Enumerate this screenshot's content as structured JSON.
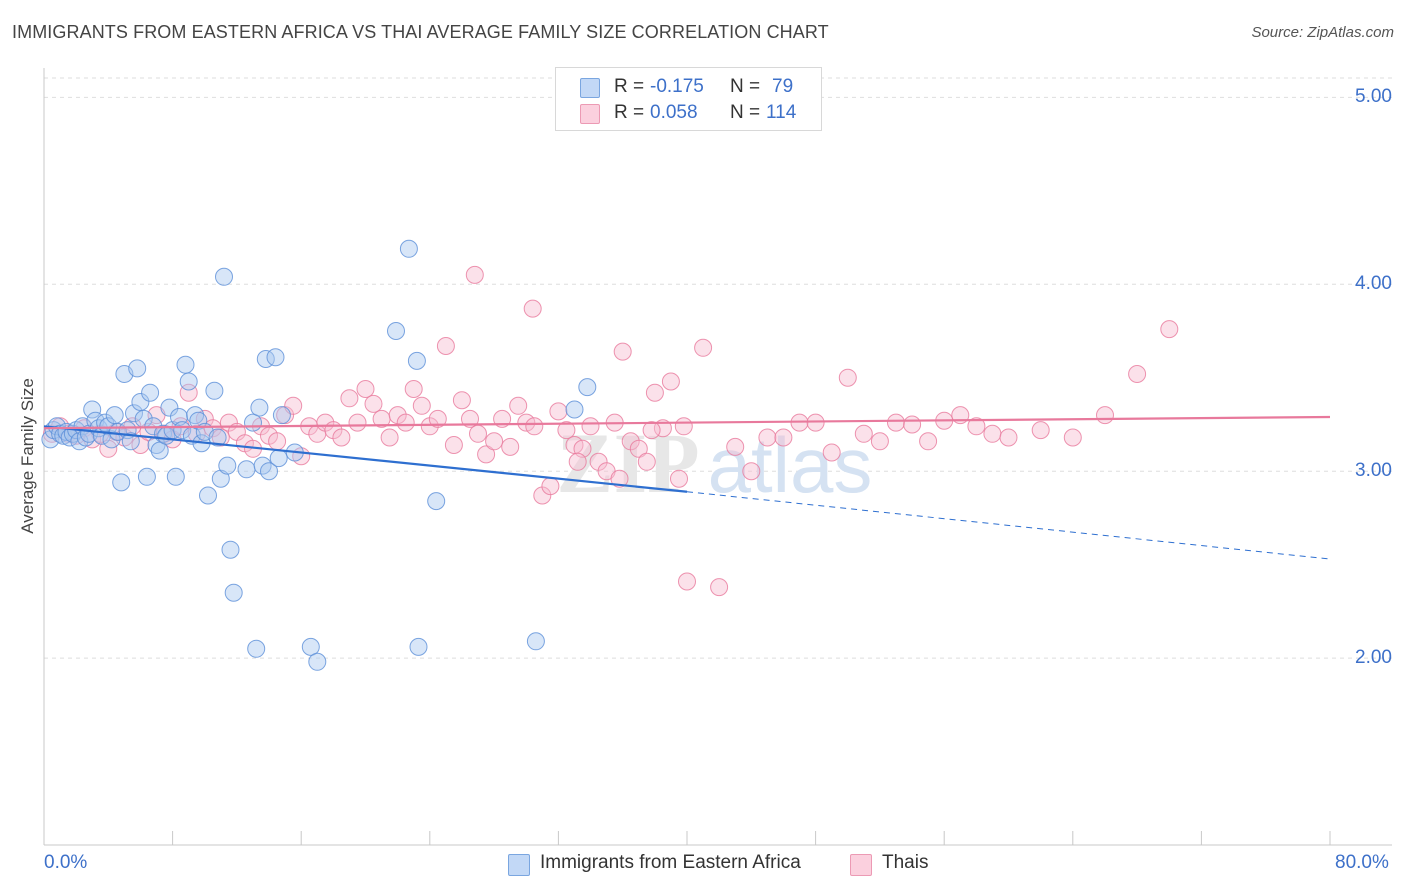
{
  "header": {
    "title": "IMMIGRANTS FROM EASTERN AFRICA VS THAI AVERAGE FAMILY SIZE CORRELATION CHART",
    "source": "Source: ZipAtlas.com"
  },
  "watermark": {
    "part1": "ZIP",
    "part2": "atlas"
  },
  "stats": [
    {
      "r_label": "R =",
      "r_value": "-0.175",
      "n_label": "N =",
      "n_value": "79",
      "color": "#a8c8f0"
    },
    {
      "r_label": "R =",
      "r_value": "0.058",
      "n_label": "N =",
      "n_value": "114",
      "color": "#f7bcd0"
    }
  ],
  "legend": [
    {
      "label": "Immigrants from Eastern Africa",
      "color": "#a8c8f0"
    },
    {
      "label": "Thais",
      "color": "#f7bcd0"
    }
  ],
  "chart_data": {
    "type": "scatter",
    "ylabel": "Average Family Size",
    "xlabel": "",
    "xlim": [
      0,
      80
    ],
    "ylim": [
      1.0,
      5.2
    ],
    "x_tick_labels": [
      "0.0%",
      "80.0%"
    ],
    "y_ticks": [
      {
        "value": 2.0,
        "label": "2.00"
      },
      {
        "value": 3.0,
        "label": "3.00"
      },
      {
        "value": 4.0,
        "label": "4.00"
      },
      {
        "value": 5.0,
        "label": "5.00"
      }
    ],
    "grid": "horizontal dashed",
    "series": [
      {
        "name": "Immigrants from Eastern Africa",
        "color": "#5b8fd8",
        "fill": "#a8c8f0",
        "trend": {
          "x0": 0,
          "y0": 3.24,
          "x1": 40,
          "y1": 2.89,
          "dashed_to_x": 80,
          "dashed_to_y": 2.53,
          "color": "#2e6fd0"
        },
        "points": [
          [
            0.4,
            3.17
          ],
          [
            0.6,
            3.22
          ],
          [
            0.8,
            3.24
          ],
          [
            1.0,
            3.2
          ],
          [
            1.2,
            3.19
          ],
          [
            1.4,
            3.21
          ],
          [
            1.6,
            3.18
          ],
          [
            1.8,
            3.2
          ],
          [
            2.0,
            3.22
          ],
          [
            2.2,
            3.16
          ],
          [
            2.4,
            3.24
          ],
          [
            2.6,
            3.18
          ],
          [
            2.8,
            3.2
          ],
          [
            3.0,
            3.33
          ],
          [
            3.2,
            3.27
          ],
          [
            3.4,
            3.23
          ],
          [
            3.6,
            3.19
          ],
          [
            3.8,
            3.26
          ],
          [
            4.0,
            3.24
          ],
          [
            4.2,
            3.17
          ],
          [
            4.4,
            3.3
          ],
          [
            4.6,
            3.21
          ],
          [
            4.8,
            2.94
          ],
          [
            5.0,
            3.52
          ],
          [
            5.2,
            3.22
          ],
          [
            5.4,
            3.16
          ],
          [
            5.6,
            3.31
          ],
          [
            5.8,
            3.55
          ],
          [
            6.0,
            3.37
          ],
          [
            6.2,
            3.28
          ],
          [
            6.4,
            2.97
          ],
          [
            6.6,
            3.42
          ],
          [
            6.8,
            3.24
          ],
          [
            7.0,
            3.14
          ],
          [
            7.2,
            3.11
          ],
          [
            7.4,
            3.2
          ],
          [
            7.6,
            3.19
          ],
          [
            7.8,
            3.34
          ],
          [
            8.0,
            3.22
          ],
          [
            8.2,
            2.97
          ],
          [
            8.4,
            3.29
          ],
          [
            8.6,
            3.22
          ],
          [
            8.8,
            3.57
          ],
          [
            9.0,
            3.48
          ],
          [
            9.2,
            3.19
          ],
          [
            9.4,
            3.3
          ],
          [
            9.6,
            3.27
          ],
          [
            9.8,
            3.15
          ],
          [
            10.0,
            3.21
          ],
          [
            10.2,
            2.87
          ],
          [
            10.6,
            3.43
          ],
          [
            10.8,
            3.18
          ],
          [
            11.0,
            2.96
          ],
          [
            11.2,
            4.04
          ],
          [
            11.4,
            3.03
          ],
          [
            11.6,
            2.58
          ],
          [
            11.8,
            2.35
          ],
          [
            12.6,
            3.01
          ],
          [
            13.0,
            3.26
          ],
          [
            13.4,
            3.34
          ],
          [
            13.6,
            3.03
          ],
          [
            13.8,
            3.6
          ],
          [
            13.2,
            2.05
          ],
          [
            14.0,
            3.0
          ],
          [
            14.4,
            3.61
          ],
          [
            14.6,
            3.07
          ],
          [
            14.8,
            3.3
          ],
          [
            15.6,
            3.1
          ],
          [
            16.6,
            2.06
          ],
          [
            17.0,
            1.98
          ],
          [
            21.9,
            3.75
          ],
          [
            22.7,
            4.19
          ],
          [
            23.2,
            3.59
          ],
          [
            23.3,
            2.06
          ],
          [
            24.4,
            2.84
          ],
          [
            30.6,
            2.09
          ],
          [
            33.0,
            3.33
          ],
          [
            33.8,
            3.45
          ]
        ]
      },
      {
        "name": "Thais",
        "color": "#e8799c",
        "fill": "#f7bcd0",
        "trend": {
          "x0": 0,
          "y0": 3.23,
          "x1": 80,
          "y1": 3.29,
          "color": "#e8799c"
        },
        "points": [
          [
            0.5,
            3.2
          ],
          [
            1.0,
            3.24
          ],
          [
            1.5,
            3.2
          ],
          [
            2.0,
            3.19
          ],
          [
            2.5,
            3.23
          ],
          [
            3.0,
            3.17
          ],
          [
            3.5,
            3.2
          ],
          [
            4.0,
            3.12
          ],
          [
            4.5,
            3.21
          ],
          [
            5.0,
            3.18
          ],
          [
            5.5,
            3.24
          ],
          [
            6.0,
            3.14
          ],
          [
            6.5,
            3.21
          ],
          [
            7.0,
            3.3
          ],
          [
            7.5,
            3.2
          ],
          [
            8.0,
            3.17
          ],
          [
            8.5,
            3.24
          ],
          [
            9.0,
            3.42
          ],
          [
            9.5,
            3.2
          ],
          [
            10.0,
            3.28
          ],
          [
            10.5,
            3.23
          ],
          [
            11.0,
            3.18
          ],
          [
            11.5,
            3.26
          ],
          [
            12.0,
            3.21
          ],
          [
            12.5,
            3.15
          ],
          [
            13.0,
            3.12
          ],
          [
            13.5,
            3.24
          ],
          [
            14.0,
            3.19
          ],
          [
            14.5,
            3.16
          ],
          [
            15.0,
            3.3
          ],
          [
            15.5,
            3.35
          ],
          [
            16.0,
            3.08
          ],
          [
            16.5,
            3.24
          ],
          [
            17.0,
            3.2
          ],
          [
            17.5,
            3.26
          ],
          [
            18.0,
            3.22
          ],
          [
            18.5,
            3.18
          ],
          [
            19.0,
            3.39
          ],
          [
            19.5,
            3.26
          ],
          [
            20.0,
            3.44
          ],
          [
            20.5,
            3.36
          ],
          [
            21.0,
            3.28
          ],
          [
            21.5,
            3.18
          ],
          [
            22.0,
            3.3
          ],
          [
            22.5,
            3.26
          ],
          [
            23.0,
            3.44
          ],
          [
            23.5,
            3.35
          ],
          [
            24.0,
            3.24
          ],
          [
            24.5,
            3.28
          ],
          [
            25.0,
            3.67
          ],
          [
            25.5,
            3.14
          ],
          [
            26.0,
            3.38
          ],
          [
            26.5,
            3.28
          ],
          [
            27.0,
            3.2
          ],
          [
            27.5,
            3.09
          ],
          [
            28.0,
            3.16
          ],
          [
            28.5,
            3.28
          ],
          [
            29.0,
            3.13
          ],
          [
            29.5,
            3.35
          ],
          [
            30.0,
            3.26
          ],
          [
            30.5,
            3.24
          ],
          [
            31.0,
            2.87
          ],
          [
            31.5,
            2.92
          ],
          [
            32.0,
            3.32
          ],
          [
            32.5,
            3.22
          ],
          [
            33.0,
            3.14
          ],
          [
            33.5,
            3.12
          ],
          [
            34.0,
            3.24
          ],
          [
            34.5,
            3.05
          ],
          [
            35.0,
            3.0
          ],
          [
            35.5,
            3.26
          ],
          [
            36.0,
            3.64
          ],
          [
            36.5,
            3.16
          ],
          [
            37.0,
            3.12
          ],
          [
            37.5,
            3.05
          ],
          [
            38.0,
            3.42
          ],
          [
            38.5,
            3.23
          ],
          [
            39.0,
            3.48
          ],
          [
            39.5,
            2.96
          ],
          [
            40.0,
            2.41
          ],
          [
            41.0,
            3.66
          ],
          [
            42.0,
            2.38
          ],
          [
            43.0,
            3.13
          ],
          [
            44.0,
            3.0
          ],
          [
            45.0,
            3.18
          ],
          [
            46.0,
            3.18
          ],
          [
            47.0,
            3.26
          ],
          [
            48.0,
            3.26
          ],
          [
            49.0,
            3.1
          ],
          [
            50.0,
            3.5
          ],
          [
            51.0,
            3.2
          ],
          [
            52.0,
            3.16
          ],
          [
            53.0,
            3.26
          ],
          [
            54.0,
            3.25
          ],
          [
            55.0,
            3.16
          ],
          [
            56.0,
            3.27
          ],
          [
            57.0,
            3.3
          ],
          [
            58.0,
            3.24
          ],
          [
            59.0,
            3.2
          ],
          [
            60.0,
            3.18
          ],
          [
            62.0,
            3.22
          ],
          [
            64.0,
            3.18
          ],
          [
            66.0,
            3.3
          ],
          [
            68.0,
            3.52
          ],
          [
            70.0,
            3.76
          ],
          [
            26.8,
            4.05
          ],
          [
            30.4,
            3.87
          ],
          [
            33.2,
            3.05
          ],
          [
            35.8,
            2.96
          ],
          [
            37.8,
            3.22
          ],
          [
            39.8,
            3.24
          ]
        ]
      }
    ]
  }
}
